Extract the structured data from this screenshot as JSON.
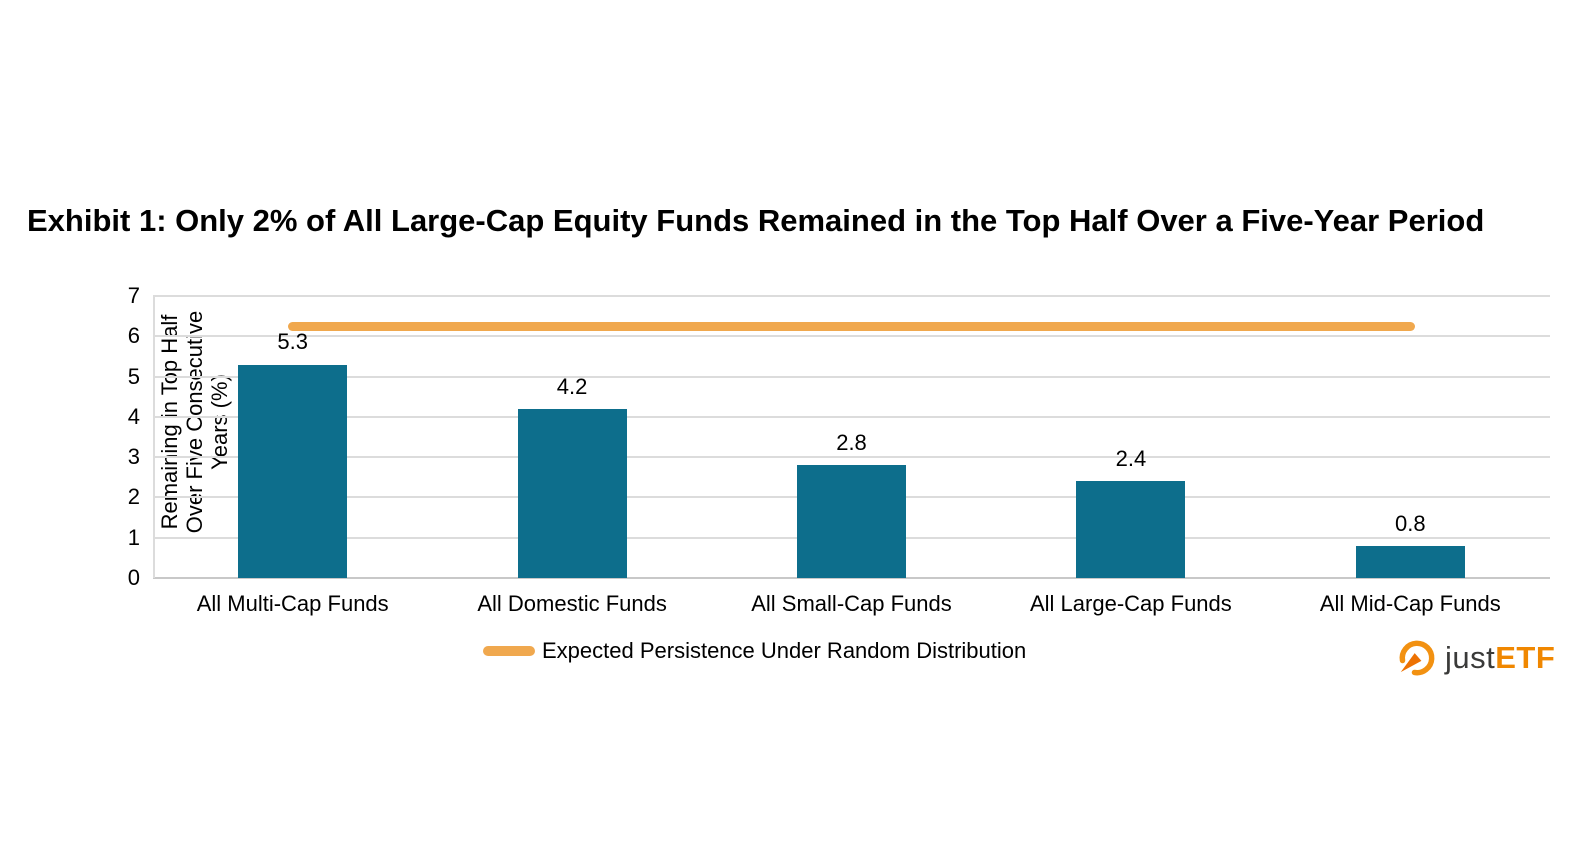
{
  "title": "Exhibit 1: Only 2% of All Large-Cap Equity Funds Remained in the Top Half Over a Five-Year Period",
  "chart_data": {
    "type": "bar",
    "categories": [
      "All Multi-Cap Funds",
      "All Domestic Funds",
      "All Small-Cap Funds",
      "All Large-Cap Funds",
      "All Mid-Cap Funds"
    ],
    "values": [
      5.3,
      4.2,
      2.8,
      2.4,
      0.8
    ],
    "title": "Exhibit 1: Only 2% of All Large-Cap Equity Funds Remained in the Top Half Over a Five-Year Period",
    "xlabel": "",
    "ylabel": "Remaining in Top Half Over Five Consecutive Years (%)",
    "ylabel_lines": [
      "Remaining in Top Half",
      "Over Five Consecutive",
      "Years (%)"
    ],
    "ylim": [
      0,
      7
    ],
    "yticks": [
      0,
      1,
      2,
      3,
      4,
      5,
      6,
      7
    ],
    "grid": "horizontal",
    "bar_color": "#0d6e8c",
    "reference_line": {
      "label": "Expected Persistence Under Random Distribution",
      "value": 6.25,
      "color": "#f0a84e",
      "style": "solid-rounded",
      "spans": "first to last category center"
    },
    "legend_position": "bottom-center"
  },
  "legend": {
    "label": "Expected Persistence Under Random Distribution",
    "swatch_color": "#f0a84e"
  },
  "logo": {
    "text_just": "just",
    "text_etf": "ETF",
    "just_color": "#3a3a39",
    "etf_color": "#f08700",
    "icon": "gauge-icon",
    "icon_color": "#f29111"
  },
  "colors": {
    "bar_teal": "#0d6e8c",
    "line_orange": "#f0a84e",
    "gridline_gray": "#dcdcdc",
    "background": "#ffffff",
    "text": "#000000"
  }
}
